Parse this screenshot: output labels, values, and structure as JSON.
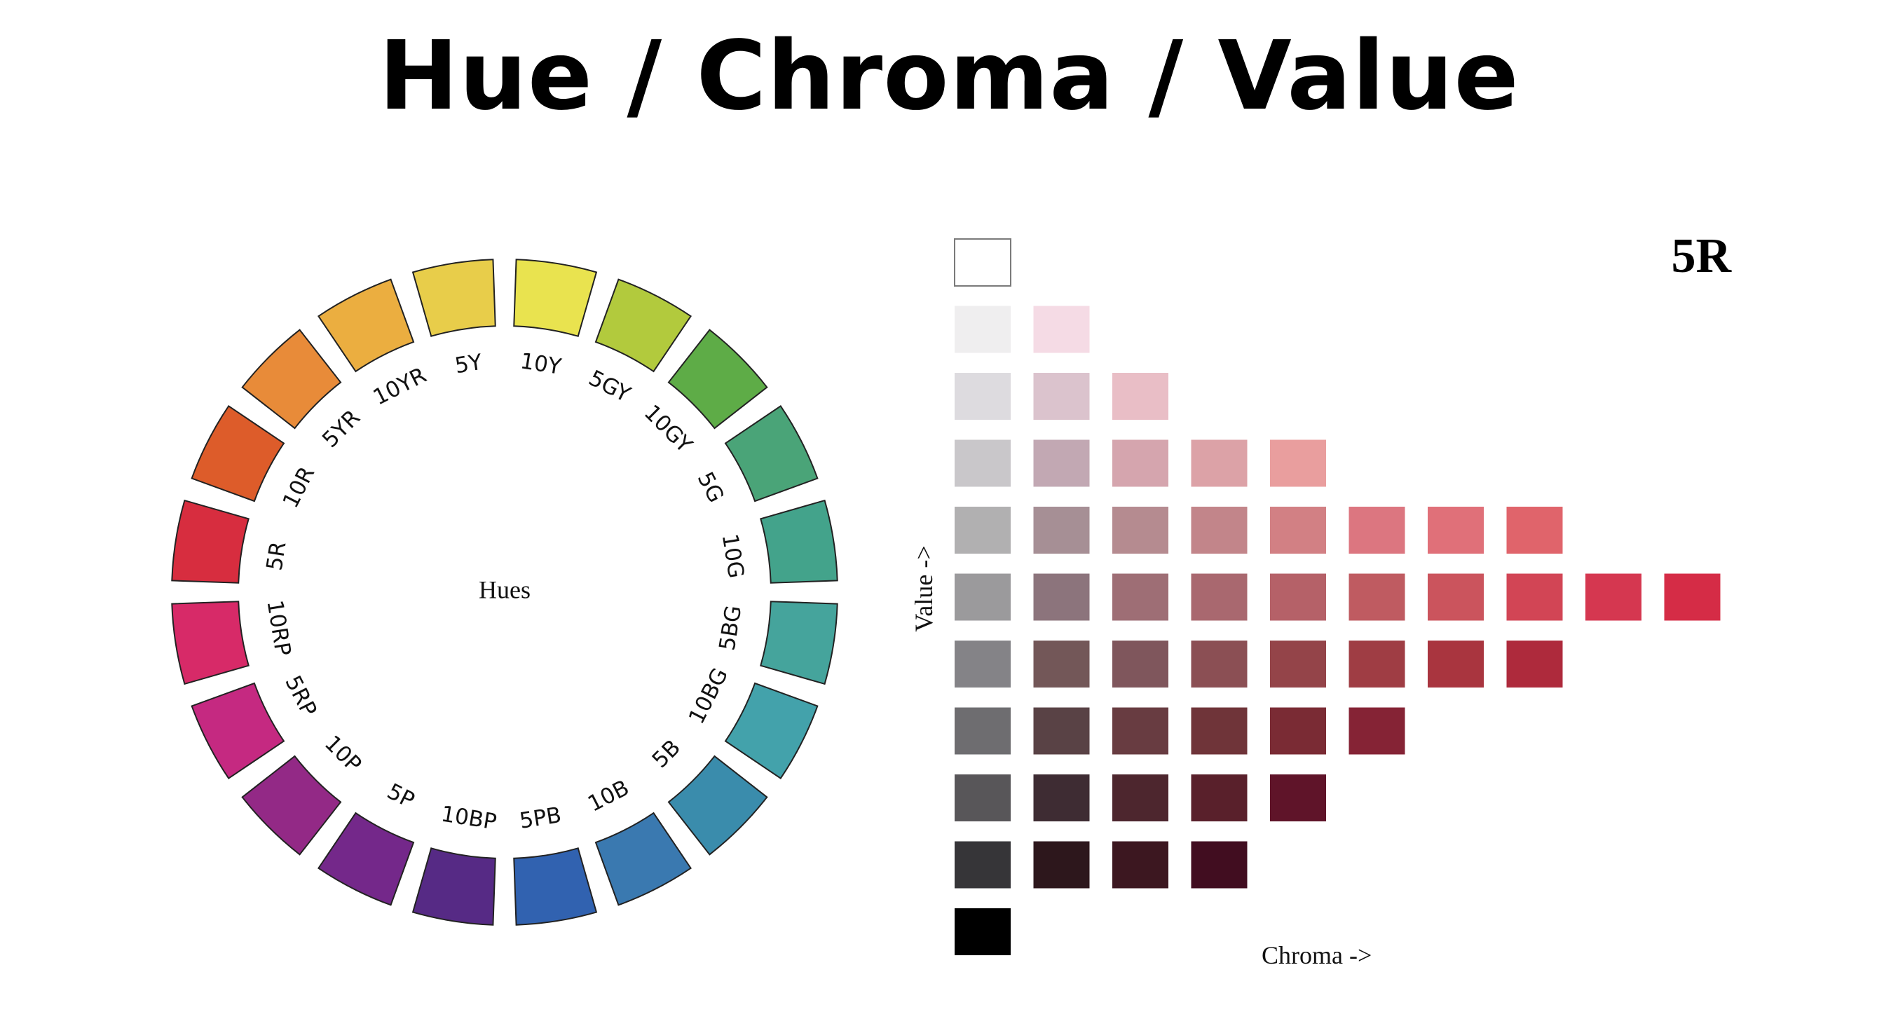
{
  "title": "Hue / Chroma / Value",
  "wheel": {
    "center_label": "Hues",
    "hues": [
      {
        "name": "10Y",
        "color": "#e9e34f"
      },
      {
        "name": "5GY",
        "color": "#b2ca3d"
      },
      {
        "name": "10GY",
        "color": "#5eac47"
      },
      {
        "name": "5G",
        "color": "#4aa478"
      },
      {
        "name": "10G",
        "color": "#43a38b"
      },
      {
        "name": "5BG",
        "color": "#45a49c"
      },
      {
        "name": "10BG",
        "color": "#43a2ab"
      },
      {
        "name": "5B",
        "color": "#3a8cac"
      },
      {
        "name": "10B",
        "color": "#3a79b0"
      },
      {
        "name": "5PB",
        "color": "#3162b0"
      },
      {
        "name": "10BP",
        "color": "#562a85"
      },
      {
        "name": "5P",
        "color": "#74288a"
      },
      {
        "name": "10P",
        "color": "#932986"
      },
      {
        "name": "5RP",
        "color": "#c52981"
      },
      {
        "name": "10RP",
        "color": "#d72a68"
      },
      {
        "name": "5R",
        "color": "#d72d3f"
      },
      {
        "name": "10R",
        "color": "#dd5c2a"
      },
      {
        "name": "5YR",
        "color": "#e88b39"
      },
      {
        "name": "10YR",
        "color": "#ebae40"
      },
      {
        "name": "5Y",
        "color": "#e8cd4a"
      }
    ]
  },
  "chip_chart": {
    "hue": "5R",
    "x_label": "Chroma ->",
    "y_label": "Value ->",
    "rows": [
      [
        "#ffffff"
      ],
      [
        "#efeeef",
        "#f5dbe5"
      ],
      [
        "#dddbdf",
        "#dbc3cd",
        "#e9bec6"
      ],
      [
        "#c9c7ca",
        "#c2a8b3",
        "#d5a5ae",
        "#dca2a7",
        "#e99e9e"
      ],
      [
        "#b1b0b1",
        "#a68f95",
        "#b58b90",
        "#c2858a",
        "#d28084",
        "#dc7680",
        "#e07079",
        "#e0646b"
      ],
      [
        "#9b9a9c",
        "#8c747c",
        "#9e6e75",
        "#a9686f",
        "#b56168",
        "#bf5b61",
        "#cb545d",
        "#d24555",
        "#d53750",
        "#d52c46"
      ],
      [
        "#848387",
        "#735758",
        "#7f565c",
        "#8b4f54",
        "#944449",
        "#9f3d44",
        "#a9353f",
        "#ae2a3c"
      ],
      [
        "#6e6d70",
        "#594245",
        "#683c41",
        "#6f3439",
        "#7a2b34",
        "#852335"
      ],
      [
        "#585659",
        "#3e2c33",
        "#4d262e",
        "#59202b",
        "#5f1429"
      ],
      [
        "#363538",
        "#2d171c",
        "#3c1720",
        "#410d20"
      ],
      [
        "#000000"
      ]
    ]
  }
}
